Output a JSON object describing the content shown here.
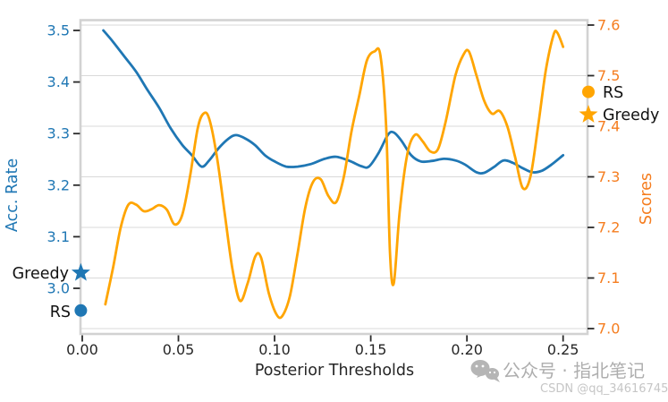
{
  "chart_data": {
    "type": "line",
    "title": "",
    "xlabel": "Posterior Thresholds",
    "x_ticks": [
      "0.00",
      "0.05",
      "0.10",
      "0.15",
      "0.20",
      "0.25"
    ],
    "xlim": [
      -0.0012,
      0.2627
    ],
    "grid": "horizontal gridlines at right-axis ticks",
    "legend_position": "markers annotated outside left and right spines",
    "axes": {
      "left": {
        "label": "Acc. Rate",
        "color": "#1f77b4",
        "ticks": [
          "3.5",
          "3.4",
          "3.3",
          "3.2",
          "3.1",
          "3.0"
        ],
        "ylim": [
          2.9115,
          3.5208
        ]
      },
      "right": {
        "label": "Scores",
        "color": "#f57d1f",
        "ticks": [
          "7.6",
          "7.5",
          "7.4",
          "7.3",
          "7.2",
          "7.1",
          "7.0"
        ],
        "ylim": [
          6.9894,
          7.6106
        ]
      }
    },
    "series": [
      {
        "name": "Acc. Rate",
        "axis": "left",
        "color": "#1f77b4",
        "linewidth": 2.8,
        "points": [
          [
            0.011,
            3.5
          ],
          [
            0.016,
            3.478
          ],
          [
            0.022,
            3.449
          ],
          [
            0.028,
            3.42
          ],
          [
            0.034,
            3.384
          ],
          [
            0.04,
            3.35
          ],
          [
            0.046,
            3.31
          ],
          [
            0.052,
            3.278
          ],
          [
            0.057,
            3.258
          ],
          [
            0.062,
            3.236
          ],
          [
            0.066,
            3.248
          ],
          [
            0.071,
            3.272
          ],
          [
            0.076,
            3.29
          ],
          [
            0.08,
            3.297
          ],
          [
            0.085,
            3.29
          ],
          [
            0.09,
            3.277
          ],
          [
            0.095,
            3.258
          ],
          [
            0.1,
            3.246
          ],
          [
            0.106,
            3.236
          ],
          [
            0.112,
            3.236
          ],
          [
            0.119,
            3.241
          ],
          [
            0.126,
            3.251
          ],
          [
            0.132,
            3.255
          ],
          [
            0.139,
            3.247
          ],
          [
            0.145,
            3.237
          ],
          [
            0.149,
            3.236
          ],
          [
            0.154,
            3.262
          ],
          [
            0.159,
            3.298
          ],
          [
            0.162,
            3.302
          ],
          [
            0.166,
            3.286
          ],
          [
            0.171,
            3.258
          ],
          [
            0.176,
            3.246
          ],
          [
            0.182,
            3.247
          ],
          [
            0.188,
            3.251
          ],
          [
            0.194,
            3.248
          ],
          [
            0.199,
            3.24
          ],
          [
            0.205,
            3.225
          ],
          [
            0.209,
            3.224
          ],
          [
            0.214,
            3.235
          ],
          [
            0.219,
            3.248
          ],
          [
            0.224,
            3.243
          ],
          [
            0.229,
            3.233
          ],
          [
            0.234,
            3.225
          ],
          [
            0.239,
            3.228
          ],
          [
            0.244,
            3.24
          ],
          [
            0.25,
            3.258
          ]
        ]
      },
      {
        "name": "Scores",
        "axis": "right",
        "color": "#ffa502",
        "linewidth": 2.8,
        "points": [
          [
            0.012,
            7.048
          ],
          [
            0.016,
            7.12
          ],
          [
            0.02,
            7.2
          ],
          [
            0.024,
            7.245
          ],
          [
            0.028,
            7.245
          ],
          [
            0.032,
            7.232
          ],
          [
            0.036,
            7.236
          ],
          [
            0.04,
            7.244
          ],
          [
            0.044,
            7.235
          ],
          [
            0.048,
            7.206
          ],
          [
            0.052,
            7.225
          ],
          [
            0.056,
            7.3
          ],
          [
            0.06,
            7.395
          ],
          [
            0.063,
            7.425
          ],
          [
            0.066,
            7.415
          ],
          [
            0.07,
            7.34
          ],
          [
            0.074,
            7.23
          ],
          [
            0.078,
            7.12
          ],
          [
            0.082,
            7.055
          ],
          [
            0.086,
            7.09
          ],
          [
            0.09,
            7.143
          ],
          [
            0.093,
            7.14
          ],
          [
            0.097,
            7.07
          ],
          [
            0.101,
            7.028
          ],
          [
            0.104,
            7.025
          ],
          [
            0.108,
            7.065
          ],
          [
            0.112,
            7.15
          ],
          [
            0.116,
            7.24
          ],
          [
            0.12,
            7.29
          ],
          [
            0.124,
            7.295
          ],
          [
            0.128,
            7.262
          ],
          [
            0.132,
            7.25
          ],
          [
            0.136,
            7.3
          ],
          [
            0.14,
            7.39
          ],
          [
            0.144,
            7.46
          ],
          [
            0.148,
            7.53
          ],
          [
            0.152,
            7.548
          ],
          [
            0.155,
            7.54
          ],
          [
            0.158,
            7.4
          ],
          [
            0.16,
            7.15
          ],
          [
            0.162,
            7.09
          ],
          [
            0.165,
            7.23
          ],
          [
            0.169,
            7.345
          ],
          [
            0.173,
            7.383
          ],
          [
            0.177,
            7.37
          ],
          [
            0.181,
            7.35
          ],
          [
            0.185,
            7.355
          ],
          [
            0.189,
            7.41
          ],
          [
            0.194,
            7.5
          ],
          [
            0.198,
            7.54
          ],
          [
            0.201,
            7.548
          ],
          [
            0.205,
            7.5
          ],
          [
            0.209,
            7.45
          ],
          [
            0.213,
            7.425
          ],
          [
            0.217,
            7.43
          ],
          [
            0.221,
            7.4
          ],
          [
            0.225,
            7.34
          ],
          [
            0.229,
            7.278
          ],
          [
            0.233,
            7.3
          ],
          [
            0.237,
            7.4
          ],
          [
            0.241,
            7.51
          ],
          [
            0.245,
            7.58
          ],
          [
            0.247,
            7.585
          ],
          [
            0.25,
            7.557
          ]
        ]
      }
    ],
    "markers": [
      {
        "label": "Greedy",
        "shape": "star",
        "axis": "left",
        "value": 3.03,
        "color": "#1f77b4",
        "position": "left-edge"
      },
      {
        "label": "RS",
        "shape": "circle",
        "axis": "left",
        "value": 2.957,
        "color": "#1f77b4",
        "position": "left-edge"
      },
      {
        "label": "RS",
        "shape": "circle",
        "axis": "right",
        "value": 7.468,
        "color": "#ffa502",
        "position": "right-edge"
      },
      {
        "label": "Greedy",
        "shape": "star",
        "axis": "right",
        "value": 7.423,
        "color": "#ffa502",
        "position": "right-edge"
      }
    ]
  },
  "watermark": {
    "line1": "公众号 · 指北笔记",
    "line2": "CSDN @qq_34616745",
    "icon": "wechat-icon"
  }
}
